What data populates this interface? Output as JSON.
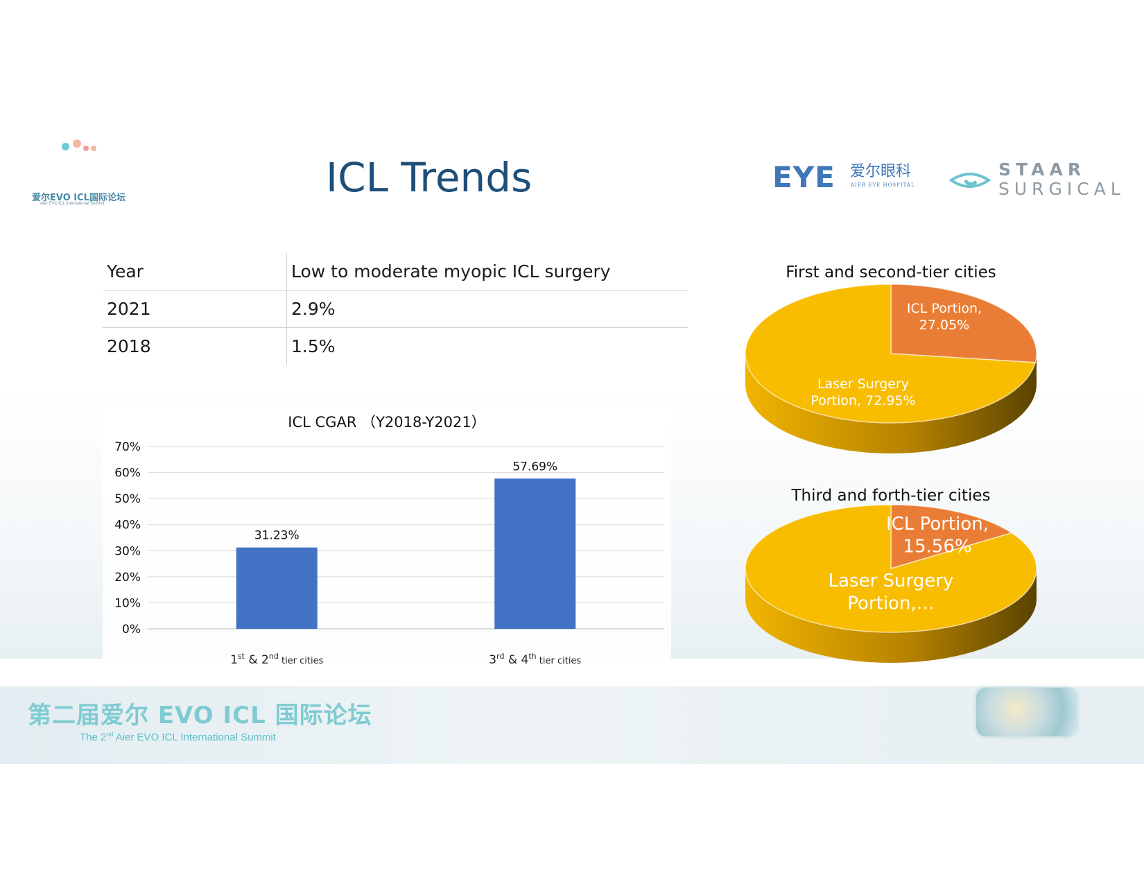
{
  "header": {
    "title": "ICL Trends",
    "summit_logo_cn": "爱尔EVO ICL国际论坛",
    "summit_logo_en": "Aier EVO ICL International Summit",
    "aier_mark": "EYE",
    "aier_cn": "爱尔眼科",
    "aier_en": "AIER EYE HOSPITAL",
    "staar_line1": "STAAR",
    "staar_line2": "SURGICAL"
  },
  "table": {
    "headers": [
      "Year",
      "Low to moderate myopic ICL surgery"
    ],
    "rows": [
      [
        "2021",
        "2.9%"
      ],
      [
        "2018",
        "1.5%"
      ]
    ]
  },
  "chart_data": [
    {
      "type": "bar",
      "title": "ICL CGAR （Y2018-Y2021）",
      "categories": [
        "1st & 2nd tier cities",
        "3rd & 4th tier cities"
      ],
      "category_parts": [
        {
          "num1": "1",
          "sup1": "st",
          "amp": " & ",
          "num2": "2",
          "sup2": "nd",
          "tail": " tier cities"
        },
        {
          "num1": "3",
          "sup1": "rd",
          "amp": "  & ",
          "num2": "4",
          "sup2": "th",
          "tail": " tier cities"
        }
      ],
      "values": [
        31.23,
        57.69
      ],
      "data_labels": [
        "31.23%",
        "57.69%"
      ],
      "ylim": [
        0,
        70
      ],
      "yticks": [
        "0%",
        "10%",
        "20%",
        "30%",
        "40%",
        "50%",
        "60%",
        "70%"
      ],
      "color": "#4472c4",
      "grid": true
    },
    {
      "type": "pie",
      "title": "First and second-tier cities",
      "slices": [
        {
          "name": "ICL Portion",
          "value": 27.05,
          "label": [
            "ICL Portion,",
            "27.05%"
          ],
          "color": "#ea7d35"
        },
        {
          "name": "Laser Surgery Portion",
          "value": 72.95,
          "label": [
            "Laser Surgery",
            "Portion, 72.95%"
          ],
          "color": "#f8bd00"
        }
      ]
    },
    {
      "type": "pie",
      "title": "Third and forth-tier cities",
      "slices": [
        {
          "name": "ICL Portion",
          "value": 15.56,
          "label": [
            "ICL Portion,",
            "15.56%"
          ],
          "color": "#ea7d35"
        },
        {
          "name": "Laser Surgery Portion",
          "value": 84.44,
          "label": [
            "Laser Surgery",
            "Portion,…"
          ],
          "color": "#f8bd00"
        }
      ]
    }
  ],
  "footer": {
    "title_cn": "第二届爱尔 EVO ICL 国际论坛",
    "sub_pre": "The 2",
    "sub_sup": "nd",
    "sub_post": " Aier EVO ICL International Summit"
  }
}
